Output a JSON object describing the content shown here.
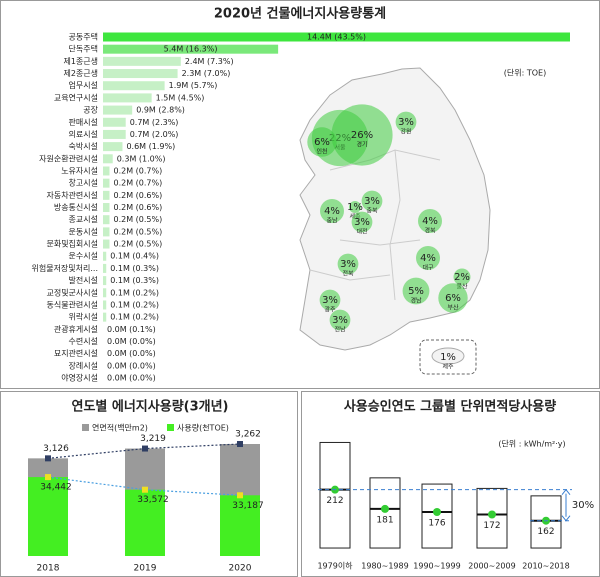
{
  "chart_data": [
    {
      "type": "barh",
      "title": "2020년 건물에너지사용량통계",
      "annotation": "(단위: TOE)",
      "categories": [
        "공동주택",
        "단독주택",
        "제1종근생",
        "제2종근생",
        "업무시설",
        "교육연구시설",
        "공장",
        "판매시설",
        "의료시설",
        "숙박시설",
        "자원순환관련시설",
        "노유자시설",
        "창고시설",
        "자동차관련시설",
        "방송통신시설",
        "종교시설",
        "운동시설",
        "문화및집회시설",
        "운수시설",
        "위험물저장및처리...",
        "발전시설",
        "교정및군사시설",
        "동식물관련시설",
        "위락시설",
        "관광휴게시설",
        "수련시설",
        "묘지관련시설",
        "장례시설",
        "야영장시설"
      ],
      "values": [
        14.4,
        5.4,
        2.4,
        2.3,
        1.9,
        1.5,
        0.9,
        0.7,
        0.7,
        0.6,
        0.3,
        0.2,
        0.2,
        0.2,
        0.2,
        0.2,
        0.2,
        0.2,
        0.1,
        0.1,
        0.1,
        0.1,
        0.1,
        0.1,
        0.0,
        0.0,
        0.0,
        0.0,
        0.0
      ],
      "value_labels": [
        "14.4M (43.5%)",
        "5.4M (16.3%)",
        "2.4M (7.3%)",
        "2.3M (7.0%)",
        "1.9M (5.7%)",
        "1.5M (4.5%)",
        "0.9M (2.8%)",
        "0.7M (2.3%)",
        "0.7M (2.0%)",
        "0.6M (1.9%)",
        "0.3M (1.0%)",
        "0.2M (0.7%)",
        "0.2M (0.7%)",
        "0.2M (0.6%)",
        "0.2M (0.6%)",
        "0.2M (0.5%)",
        "0.2M (0.5%)",
        "0.2M (0.5%)",
        "0.1M (0.4%)",
        "0.1M (0.3%)",
        "0.1M (0.3%)",
        "0.1M (0.2%)",
        "0.1M (0.2%)",
        "0.1M (0.2%)",
        "0.0M (0.1%)",
        "0.0M (0.0%)",
        "0.0M (0.0%)",
        "0.0M (0.0%)",
        "0.0M (0.0%)"
      ],
      "colors": [
        "#3ee63e",
        "#7ae87a",
        "#c6f0c6"
      ]
    },
    {
      "type": "map",
      "categories": [
        "강원",
        "서울",
        "경기",
        "인천",
        "충북",
        "세종",
        "충남",
        "대전",
        "경북",
        "전북",
        "대구",
        "울산",
        "경남",
        "부산",
        "광주",
        "전남",
        "제주"
      ],
      "values": [
        3,
        22,
        26,
        6,
        3,
        1,
        4,
        3,
        4,
        3,
        4,
        2,
        5,
        6,
        3,
        3,
        1
      ],
      "value_labels": [
        "3%",
        "22%",
        "26%",
        "6%",
        "3%",
        "1%",
        "4%",
        "3%",
        "4%",
        "3%",
        "4%",
        "2%",
        "5%",
        "6%",
        "3%",
        "3%",
        "1%"
      ],
      "color": "#3fcc3f"
    },
    {
      "type": "bar-line",
      "title": "연도별 에너지사용량(3개년)",
      "categories": [
        "2018",
        "2019",
        "2020"
      ],
      "series": [
        {
          "name": "연면적(백만m2)",
          "color": "#9a9a9a",
          "line_color": "#2f3e63",
          "values": [
            3126,
            3219,
            3262
          ],
          "value_labels": [
            "3,126",
            "3,219",
            "3,262"
          ]
        },
        {
          "name": "사용량(천TOE)",
          "color": "#44ee22",
          "line_color": "#4a9fe0",
          "marker_color": "#f0e020",
          "axis": "y2",
          "values": [
            34442,
            33572,
            33187
          ],
          "value_labels": [
            "34,442",
            "33,572",
            "33,187"
          ]
        }
      ],
      "ylim": [
        2200,
        3300
      ],
      "y2lim": [
        29000,
        37000
      ]
    },
    {
      "type": "range",
      "title": "사용승인연도 그룹별 단위면적당사용량",
      "annotation": "(단위 : kWh/m²·y)",
      "change_label": "30%",
      "categories": [
        "1979이하",
        "1980~1989",
        "1990~1999",
        "2000~2009",
        "2010~2018"
      ],
      "values": [
        212,
        181,
        176,
        172,
        162
      ],
      "low": [
        118,
        118,
        118,
        118,
        118
      ],
      "high": [
        288,
        231,
        221,
        214,
        202
      ],
      "ylim": [
        110,
        300
      ],
      "color": "#33cc33",
      "guide_color": "#3a7fd0"
    }
  ]
}
